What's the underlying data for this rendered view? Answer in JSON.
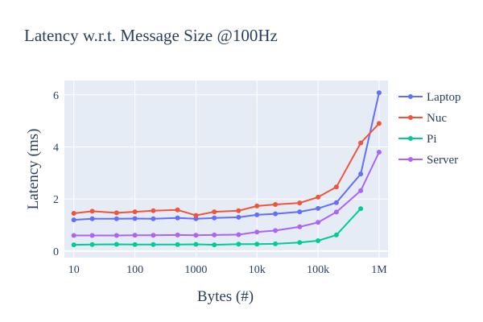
{
  "chart_data": {
    "type": "line",
    "title": "Latency w.r.t. Message Size @100Hz",
    "xlabel": "Bytes (#)",
    "ylabel": "Latency (ms)",
    "x_scale": "log",
    "xlim": [
      7,
      1400000
    ],
    "ylim": [
      -0.25,
      6.55
    ],
    "x_ticks": [
      10,
      100,
      1000,
      10000,
      100000,
      1000000
    ],
    "x_tick_labels": [
      "10",
      "100",
      "1000",
      "10k",
      "100k",
      "1M"
    ],
    "y_ticks": [
      0,
      2,
      4,
      6
    ],
    "y_tick_labels": [
      "0",
      "2",
      "4",
      "6"
    ],
    "grid": true,
    "legend_position": "right",
    "plot_background": "#e5ecf6",
    "x": [
      10,
      20,
      50,
      100,
      200,
      500,
      1000,
      2000,
      5000,
      10000,
      20000,
      50000,
      100000,
      200000,
      500000,
      1000000
    ],
    "series": [
      {
        "name": "Laptop",
        "color": "#636efa",
        "values": [
          1.2,
          1.24,
          1.24,
          1.25,
          1.24,
          1.27,
          1.24,
          1.27,
          1.3,
          1.39,
          1.43,
          1.51,
          1.64,
          1.86,
          2.96,
          6.08
        ]
      },
      {
        "name": "Nuc",
        "color": "#ef553b",
        "values": [
          1.45,
          1.53,
          1.47,
          1.51,
          1.55,
          1.58,
          1.37,
          1.51,
          1.55,
          1.73,
          1.79,
          1.85,
          2.07,
          2.46,
          4.15,
          4.9
        ]
      },
      {
        "name": "Pi",
        "color": "#00cc96",
        "values": [
          0.24,
          0.25,
          0.26,
          0.25,
          0.25,
          0.25,
          0.26,
          0.24,
          0.27,
          0.27,
          0.28,
          0.33,
          0.4,
          0.62,
          1.63,
          null
        ]
      },
      {
        "name": "Server",
        "color": "#ab63fa",
        "values": [
          0.6,
          0.6,
          0.6,
          0.61,
          0.61,
          0.62,
          0.61,
          0.62,
          0.63,
          0.73,
          0.79,
          0.93,
          1.1,
          1.5,
          2.32,
          3.8
        ]
      }
    ]
  }
}
